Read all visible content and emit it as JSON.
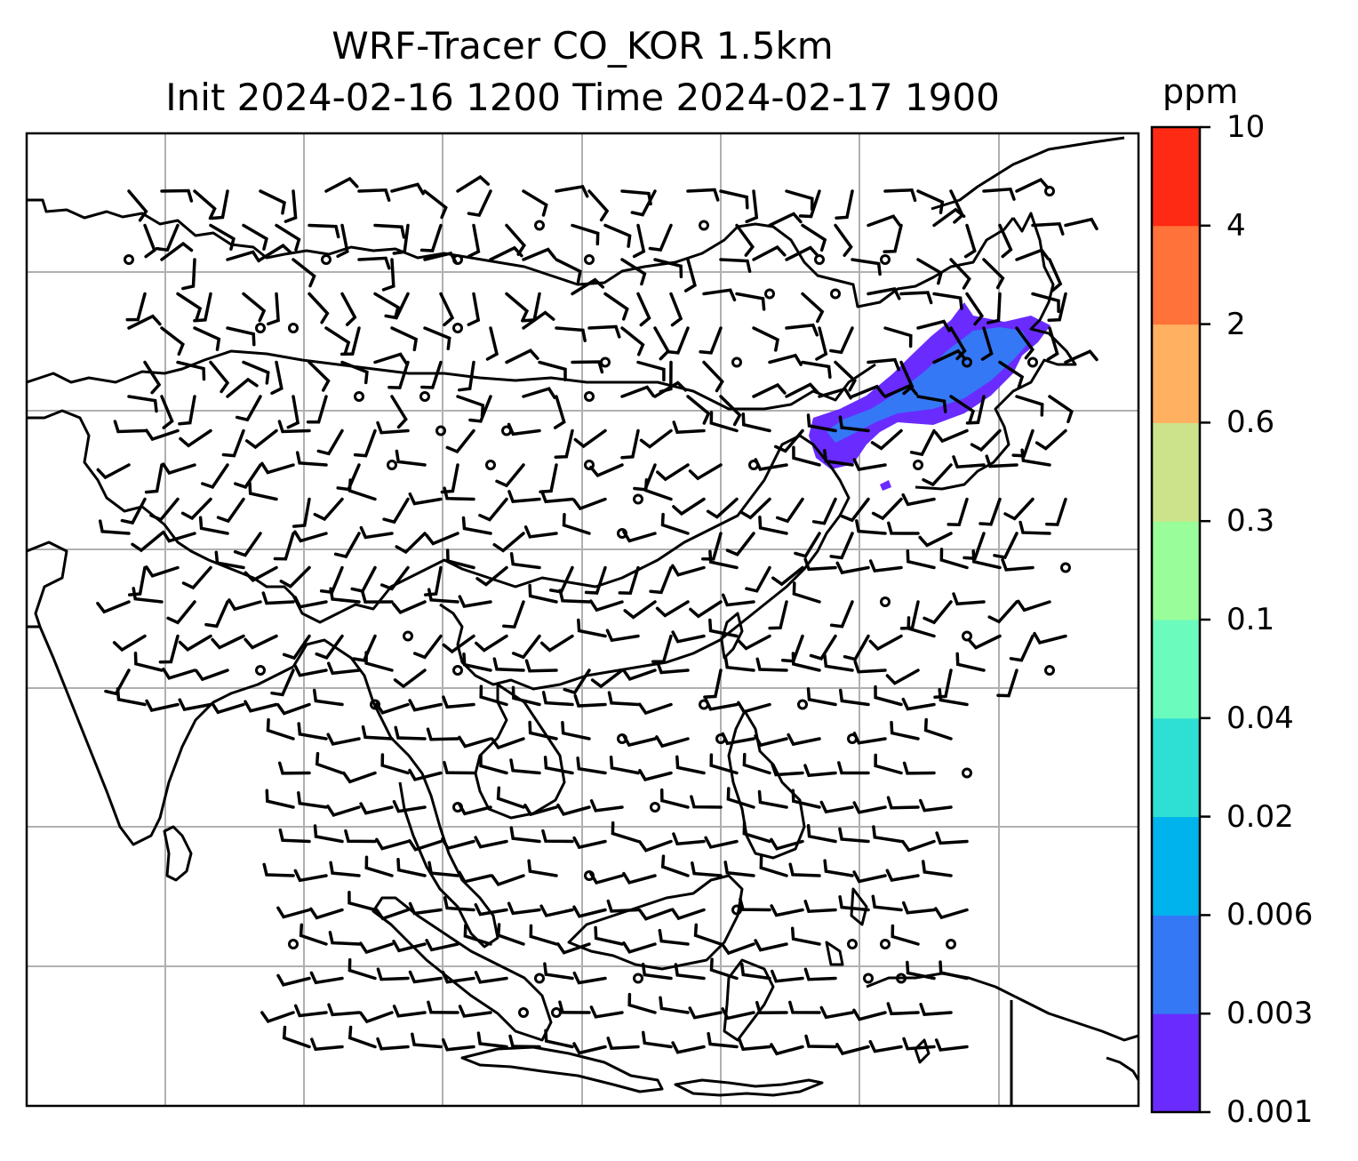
{
  "title": {
    "line1": "WRF-Tracer CO_KOR 1.5km",
    "line2": "Init 2024-02-16 1200 Time 2024-02-17 1900"
  },
  "colorbar": {
    "unit": "ppm",
    "levels": [
      "0.001",
      "0.003",
      "0.006",
      "0.02",
      "0.04",
      "0.1",
      "0.3",
      "0.6",
      "2",
      "4",
      "10"
    ],
    "colors": [
      "#6a2bff",
      "#3478f6",
      "#00b3ed",
      "#2ee0d3",
      "#6bfbbd",
      "#99fd99",
      "#cde38b",
      "#ffb061",
      "#ff7239",
      "#ff2a14"
    ]
  },
  "map": {
    "gridlines": true,
    "tracer_plume_colors": [
      "#6a2bff",
      "#3478f6"
    ],
    "coastline_color": "#000000"
  }
}
